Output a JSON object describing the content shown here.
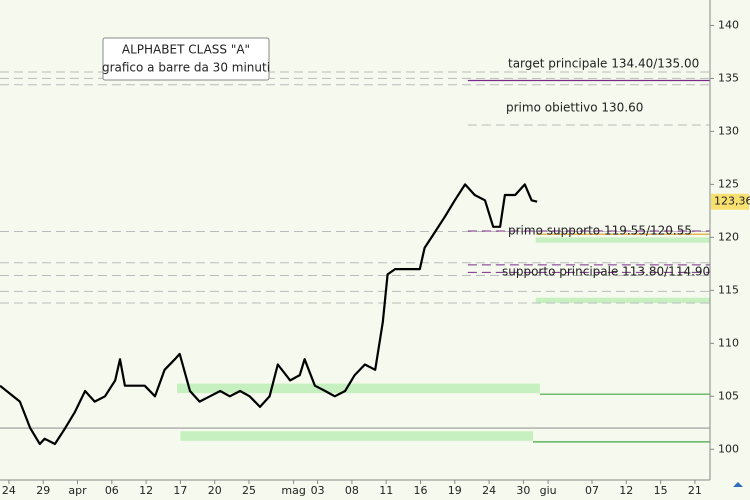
{
  "chart_data": {
    "type": "line",
    "title": "ALPHABET CLASS \"A\"",
    "subtitle": "grafico a barre da 30 minuti",
    "annotations": [
      "target principale 134.40/135.00",
      "primo obiettivo 130.60",
      "primo supporto 119.55/120.55",
      "supporto principale 113.80/114.90"
    ],
    "series": [
      {
        "color": "#000000",
        "x": [
          -1.3,
          1.6,
          3.1,
          4.5,
          5.2,
          6.7,
          8.2,
          9.6,
          11.1,
          12.5,
          14,
          15.5,
          16.2,
          16.9,
          18.4,
          19.8,
          21.3,
          22.7,
          24.2,
          24.9,
          26.4,
          27.8,
          29.3,
          30.8,
          32.2,
          33.7,
          35.1,
          36.6,
          38,
          39.2,
          41,
          42.4,
          43.1,
          44.6,
          46.1,
          47.5,
          49,
          50.4,
          51.9,
          53.4,
          54.5,
          55.2,
          56.3,
          58.5,
          59.9,
          60.6,
          62.1,
          63.6,
          65,
          66.5,
          67.9,
          69.4,
          70.6,
          71.6,
          72.3,
          73.8,
          75.2,
          76.2,
          77
        ],
        "values": [
          106,
          104.5,
          102,
          100.5,
          101,
          100.5,
          102,
          103.5,
          105.5,
          104.5,
          105,
          106.5,
          108.5,
          106,
          106,
          106,
          105,
          107.5,
          108.5,
          109,
          105.5,
          104.5,
          105,
          105.5,
          105,
          105.5,
          105,
          104,
          105,
          108,
          106.5,
          107,
          108.5,
          106,
          105.5,
          105,
          105.5,
          107,
          108,
          107.5,
          112,
          116.5,
          117,
          117,
          117,
          119,
          120.5,
          122,
          123.5,
          125,
          124,
          123.5,
          121,
          121,
          124,
          124,
          125,
          123.5,
          123.36
        ]
      }
    ],
    "last_value": {
      "value": 123.36,
      "label": "123,36"
    },
    "lines": [
      {
        "value": 135.6,
        "color": "#bbbbbb",
        "dash": true,
        "from": -1.3
      },
      {
        "value": 135.0,
        "color": "#bbbbbb",
        "dash": true,
        "from": -1.3
      },
      {
        "value": 134.4,
        "color": "#bbbbbb",
        "dash": true,
        "from": -1.3
      },
      {
        "value": 134.8,
        "color": "#7a2a8a",
        "dash": false,
        "from": 66.9
      },
      {
        "value": 130.6,
        "color": "#bbbbbb",
        "dash": true,
        "from": 66.9
      },
      {
        "value": 120.55,
        "color": "#bbbbbb",
        "dash": true,
        "from": -1.3
      },
      {
        "value": 120.6,
        "color": "#7a2a8a",
        "dash": true,
        "from": 66.9
      },
      {
        "value": 120.3,
        "color": "#e0a020",
        "dash": false,
        "from": 76.8
      },
      {
        "value": 117.6,
        "color": "#bbbbbb",
        "dash": true,
        "from": -1.3
      },
      {
        "value": 117.4,
        "color": "#7a2a8a",
        "dash": true,
        "from": 66.9
      },
      {
        "value": 116.7,
        "color": "#7a2a8a",
        "dash": true,
        "from": 66.9
      },
      {
        "value": 116.4,
        "color": "#bbbbbb",
        "dash": true,
        "from": -1.3
      },
      {
        "value": 114.9,
        "color": "#bbbbbb",
        "dash": true,
        "from": -1.3
      },
      {
        "value": 113.8,
        "color": "#bbbbbb",
        "dash": true,
        "from": -1.3
      },
      {
        "value": 102.0,
        "color": "#999999",
        "dash": false,
        "from": -1.3
      },
      {
        "value": 105.2,
        "color": "#40a840",
        "dash": false,
        "from": 77.4
      },
      {
        "value": 100.7,
        "color": "#40a840",
        "dash": false,
        "from": 76.4
      }
    ],
    "zones": [
      {
        "from": 24.5,
        "to": 77.4,
        "low": 105.3,
        "high": 106.2,
        "color": "#c6f0c0"
      },
      {
        "from": 25,
        "to": 76.4,
        "low": 100.8,
        "high": 101.7,
        "color": "#c6f0c0"
      },
      {
        "from": 76.8,
        "to": 102.2,
        "low": 113.8,
        "high": 114.3,
        "color": "#c6f0c0"
      },
      {
        "from": 76.8,
        "to": 102.2,
        "low": 119.5,
        "high": 120,
        "color": "#c6f0c0"
      }
    ],
    "xlim": [
      -1.3,
      102.2
    ],
    "ylim": [
      97.1,
      142.4
    ],
    "yticks": [
      100,
      105,
      110,
      115,
      120,
      125,
      130,
      135,
      140
    ],
    "xticks": [
      {
        "value": 0,
        "label": "24"
      },
      {
        "value": 5,
        "label": "29"
      },
      {
        "value": 10,
        "label": "apr"
      },
      {
        "value": 15,
        "label": "06"
      },
      {
        "value": 20,
        "label": "12"
      },
      {
        "value": 25,
        "label": "17"
      },
      {
        "value": 30,
        "label": "20"
      },
      {
        "value": 35,
        "label": "25"
      },
      {
        "value": 41.5,
        "label": "mag"
      },
      {
        "value": 45,
        "label": "03"
      },
      {
        "value": 50,
        "label": "08"
      },
      {
        "value": 55,
        "label": "11"
      },
      {
        "value": 60,
        "label": "16"
      },
      {
        "value": 65,
        "label": "19"
      },
      {
        "value": 70,
        "label": "24"
      },
      {
        "value": 75,
        "label": "30"
      },
      {
        "value": 78.6,
        "label": "giu"
      },
      {
        "value": 85,
        "label": "07"
      },
      {
        "value": 90,
        "label": "12"
      },
      {
        "value": 95,
        "label": "15"
      },
      {
        "value": 100,
        "label": "21"
      }
    ]
  }
}
